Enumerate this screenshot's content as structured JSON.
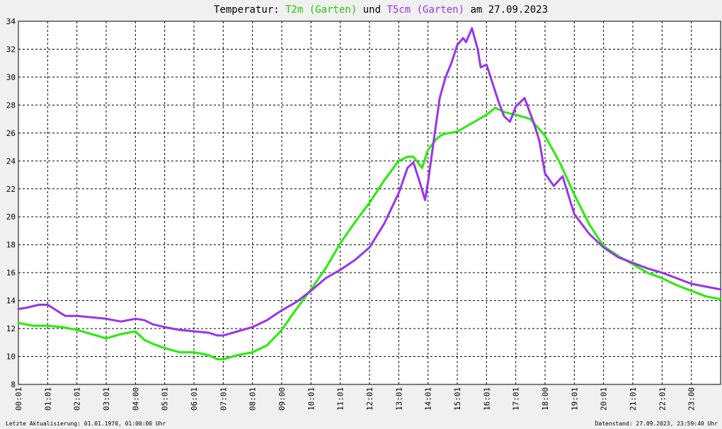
{
  "chart_data": {
    "type": "line",
    "title": {
      "prefix": "Temperatur: ",
      "series1": "T2m (Garten)",
      "middle": " und ",
      "series2": "T5cm (Garten)",
      "suffix": " am 27.09.2023"
    },
    "x_ticks": [
      "00:01",
      "01:01",
      "02:01",
      "03:01",
      "04:00",
      "05:01",
      "06:01",
      "07:01",
      "08:01",
      "09:00",
      "10:01",
      "11:01",
      "12:01",
      "13:01",
      "14:01",
      "15:01",
      "16:01",
      "17:01",
      "18:00",
      "19:01",
      "20:01",
      "21:01",
      "22:01",
      "23:00"
    ],
    "y_ticks": [
      8,
      10,
      12,
      14,
      16,
      18,
      20,
      22,
      24,
      26,
      28,
      30,
      32,
      34
    ],
    "ylim": [
      8,
      34
    ],
    "xlim_hours": [
      0,
      24
    ],
    "grid": true,
    "series": [
      {
        "name": "T2m (Garten)",
        "color": "#22ee00",
        "x": [
          0,
          0.5,
          1,
          1.5,
          2,
          2.5,
          3,
          3.5,
          4,
          4.3,
          4.6,
          5,
          5.5,
          6,
          6.5,
          6.8,
          7,
          7.5,
          8,
          8.5,
          9,
          9.5,
          10,
          10.5,
          11,
          11.5,
          12,
          12.5,
          13,
          13.3,
          13.5,
          13.8,
          14,
          14.3,
          14.5,
          15,
          15.5,
          16,
          16.3,
          16.6,
          17,
          17.5,
          18,
          18.5,
          19,
          19.5,
          20,
          20.5,
          21,
          21.5,
          22,
          22.5,
          23,
          23.5,
          24
        ],
        "y": [
          12.4,
          12.2,
          12.2,
          12.1,
          11.9,
          11.6,
          11.3,
          11.6,
          11.8,
          11.2,
          10.9,
          10.6,
          10.3,
          10.3,
          10.1,
          9.8,
          9.8,
          10.1,
          10.3,
          10.8,
          11.9,
          13.4,
          14.8,
          16.3,
          18.1,
          19.6,
          21.0,
          22.6,
          24.0,
          24.3,
          24.3,
          23.5,
          24.8,
          25.6,
          25.9,
          26.1,
          26.7,
          27.3,
          27.8,
          27.5,
          27.3,
          27.0,
          25.8,
          23.9,
          21.6,
          19.5,
          17.9,
          17.2,
          16.6,
          16.0,
          15.6,
          15.1,
          14.7,
          14.3,
          14.1
        ]
      },
      {
        "name": "T5cm (Garten)",
        "color": "#9933ee",
        "x": [
          0,
          0.3,
          0.7,
          1,
          1.3,
          1.6,
          2,
          2.5,
          3,
          3.5,
          4,
          4.3,
          4.6,
          5,
          5.5,
          6,
          6.5,
          6.8,
          7,
          7.5,
          8,
          8.5,
          9,
          9.5,
          10,
          10.5,
          11,
          11.5,
          12,
          12.5,
          13,
          13.3,
          13.5,
          13.7,
          13.9,
          14,
          14.2,
          14.4,
          14.6,
          14.8,
          15,
          15.2,
          15.3,
          15.5,
          15.7,
          15.8,
          16,
          16.2,
          16.4,
          16.6,
          16.8,
          17,
          17.3,
          17.6,
          17.8,
          18,
          18.3,
          18.6,
          19,
          19.5,
          20,
          20.5,
          21,
          21.5,
          22,
          22.5,
          23,
          23.5,
          24
        ],
        "y": [
          13.4,
          13.5,
          13.7,
          13.7,
          13.3,
          12.9,
          12.9,
          12.8,
          12.7,
          12.5,
          12.7,
          12.6,
          12.3,
          12.1,
          11.9,
          11.8,
          11.7,
          11.5,
          11.5,
          11.8,
          12.1,
          12.6,
          13.3,
          13.9,
          14.7,
          15.6,
          16.2,
          16.9,
          17.8,
          19.5,
          21.7,
          23.5,
          23.9,
          22.6,
          21.2,
          22.5,
          25.5,
          28.5,
          30.0,
          31.0,
          32.3,
          32.8,
          32.5,
          33.5,
          32.0,
          30.7,
          30.9,
          29.6,
          28.3,
          27.2,
          26.8,
          27.9,
          28.5,
          26.8,
          25.5,
          23.1,
          22.2,
          22.9,
          20.2,
          18.8,
          17.8,
          17.1,
          16.7,
          16.3,
          16.0,
          15.6,
          15.2,
          15.0,
          14.8
        ]
      }
    ]
  },
  "footer": {
    "left": "Letzte Aktualisierung: 01.01.1970, 01:00:00 Uhr",
    "right": "Datenstand: 27.09.2023, 23:59:40 Uhr"
  }
}
